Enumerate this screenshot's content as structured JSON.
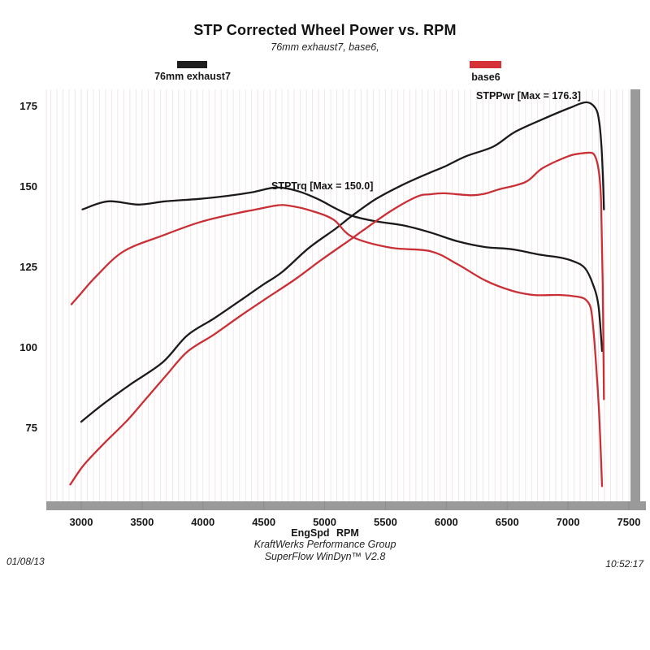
{
  "title": "STP Corrected Wheel Power vs. RPM",
  "subtitle": "76mm exhaust7, base6,",
  "legend": {
    "item1": {
      "label": "76mm exhaust7",
      "color": "#1f1f1f"
    },
    "item2": {
      "label": "base6",
      "color": "#d43237"
    }
  },
  "annotations": {
    "trq": "STPTrq [Max = 150.0]",
    "pwr": "STPPwr [Max = 176.3]"
  },
  "x_axis_title": "EngSpd RPM",
  "footer": {
    "line1": "KraftWerks Performance Group",
    "line2": "SuperFlow WinDyn™ V2.8",
    "date": "01/08/13",
    "time": "10:52:17"
  },
  "frame_color": "#9a9a9a",
  "grid_color": "#f1e6e6",
  "chart_data": {
    "type": "line",
    "title": "STP Corrected Wheel Power vs. RPM",
    "subtitle": "76mm exhaust7, base6,",
    "xlabel": "EngSpd RPM",
    "ylabel": "",
    "x_ticks": [
      3000,
      3500,
      4000,
      4500,
      5000,
      5500,
      6000,
      6500,
      7000,
      7500
    ],
    "y_ticks": [
      75,
      100,
      125,
      150,
      175
    ],
    "xlim": [
      2710,
      7560
    ],
    "ylim": [
      53,
      182
    ],
    "grid": "faint vertical lines every 50 RPM",
    "legend_position": "top",
    "series": [
      {
        "name": "76mm exhaust7 STPPwr",
        "label": "STPPwr [Max = 176.3]",
        "max": 176.3,
        "color": "#1b1b1b",
        "points": [
          [
            3000,
            77
          ],
          [
            3180,
            82.5
          ],
          [
            3400,
            88.5
          ],
          [
            3670,
            95.5
          ],
          [
            3870,
            103.8
          ],
          [
            4090,
            109.1
          ],
          [
            4315,
            114.9
          ],
          [
            4490,
            119.5
          ],
          [
            4650,
            123.5
          ],
          [
            4870,
            131
          ],
          [
            5090,
            137
          ],
          [
            5225,
            141
          ],
          [
            5420,
            146.2
          ],
          [
            5650,
            150.8
          ],
          [
            5870,
            154.5
          ],
          [
            5985,
            156.3
          ],
          [
            6160,
            159.5
          ],
          [
            6385,
            162.5
          ],
          [
            6560,
            167
          ],
          [
            6790,
            171
          ],
          [
            7010,
            174.5
          ],
          [
            7150,
            176.3
          ],
          [
            7225,
            174.5
          ],
          [
            7255,
            170.5
          ],
          [
            7275,
            162.5
          ],
          [
            7288,
            152
          ],
          [
            7295,
            143
          ]
        ]
      },
      {
        "name": "76mm exhaust7 STPTrq",
        "label": "STPTrq [Max = 150.0]",
        "max": 150.0,
        "color": "#1b1b1b",
        "points": [
          [
            3010,
            143
          ],
          [
            3220,
            145.5
          ],
          [
            3470,
            144.5
          ],
          [
            3690,
            145.5
          ],
          [
            3980,
            146.3
          ],
          [
            4200,
            147.2
          ],
          [
            4400,
            148.3
          ],
          [
            4600,
            149.8
          ],
          [
            4770,
            148.8
          ],
          [
            4940,
            146.3
          ],
          [
            5090,
            143.3
          ],
          [
            5225,
            141
          ],
          [
            5420,
            139.3
          ],
          [
            5650,
            138
          ],
          [
            5870,
            135.8
          ],
          [
            6100,
            133
          ],
          [
            6320,
            131.3
          ],
          [
            6540,
            130.6
          ],
          [
            6760,
            129
          ],
          [
            6940,
            128
          ],
          [
            7050,
            126.8
          ],
          [
            7140,
            124.7
          ],
          [
            7205,
            119.7
          ],
          [
            7250,
            113
          ],
          [
            7280,
            99
          ]
        ]
      },
      {
        "name": "base6 STPPwr",
        "max": 160.6,
        "color": "#cb2f36",
        "points": [
          [
            2910,
            57.5
          ],
          [
            3020,
            63.5
          ],
          [
            3180,
            70
          ],
          [
            3380,
            77.5
          ],
          [
            3540,
            84.5
          ],
          [
            3700,
            91.5
          ],
          [
            3870,
            98.7
          ],
          [
            4090,
            104.1
          ],
          [
            4315,
            110.1
          ],
          [
            4535,
            115.7
          ],
          [
            4755,
            121.2
          ],
          [
            4980,
            127.5
          ],
          [
            5225,
            134
          ],
          [
            5320,
            136.6
          ],
          [
            5540,
            142.4
          ],
          [
            5760,
            147
          ],
          [
            5870,
            147.7
          ],
          [
            5985,
            148
          ],
          [
            6200,
            147.4
          ],
          [
            6320,
            147.9
          ],
          [
            6430,
            149.2
          ],
          [
            6650,
            151.5
          ],
          [
            6790,
            155.8
          ],
          [
            7000,
            159.5
          ],
          [
            7110,
            160.4
          ],
          [
            7185,
            160.6
          ],
          [
            7215,
            160
          ],
          [
            7240,
            157.5
          ],
          [
            7260,
            152.5
          ],
          [
            7272,
            144.5
          ],
          [
            7285,
            120
          ],
          [
            7295,
            84
          ]
        ]
      },
      {
        "name": "base6 STPTrq",
        "max": 144.2,
        "color": "#cb2f36",
        "points": [
          [
            2920,
            113.5
          ],
          [
            3000,
            117
          ],
          [
            3130,
            122.5
          ],
          [
            3350,
            130
          ],
          [
            3670,
            134.9
          ],
          [
            3980,
            139.1
          ],
          [
            4290,
            141.9
          ],
          [
            4400,
            142.7
          ],
          [
            4600,
            144.2
          ],
          [
            4700,
            144.2
          ],
          [
            4870,
            142.8
          ],
          [
            5070,
            139.9
          ],
          [
            5225,
            134.5
          ],
          [
            5540,
            131.1
          ],
          [
            5870,
            130
          ],
          [
            6090,
            126
          ],
          [
            6320,
            120.9
          ],
          [
            6540,
            117.7
          ],
          [
            6720,
            116.4
          ],
          [
            6940,
            116.4
          ],
          [
            7070,
            115.9
          ],
          [
            7140,
            115.1
          ],
          [
            7185,
            112.6
          ],
          [
            7205,
            107.1
          ],
          [
            7225,
            97.7
          ],
          [
            7255,
            80
          ],
          [
            7280,
            57
          ]
        ]
      }
    ]
  }
}
